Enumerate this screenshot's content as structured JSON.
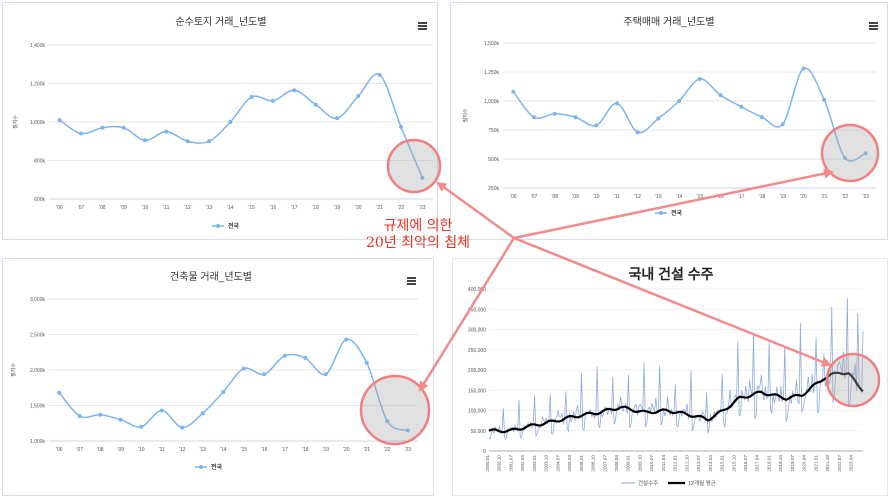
{
  "annotation": {
    "line1": "규제에 의한",
    "line2": "20년 최악의 침체"
  },
  "charts": [
    {
      "id": "land",
      "type": "line",
      "title": "순수토지 거래_년도별",
      "ylabel": "필지수",
      "ylim": [
        600000,
        1400000
      ],
      "yticks": [
        "600k",
        "800k",
        "1,000k",
        "1,200k",
        "1,400k"
      ],
      "ytick_values": [
        600000,
        800000,
        1000000,
        1200000,
        1400000
      ],
      "categories": [
        "'06",
        "'07",
        "'08",
        "'09",
        "'10",
        "'11",
        "'12",
        "'13",
        "'14",
        "'15",
        "'16",
        "'17",
        "'18",
        "'19",
        "'20",
        "'21",
        "'22",
        "'23"
      ],
      "series": [
        {
          "name": "전국",
          "values": [
            1010000,
            940000,
            970000,
            970000,
            905000,
            950000,
            900000,
            900000,
            1000000,
            1130000,
            1110000,
            1165000,
            1090000,
            1020000,
            1135000,
            1245000,
            975000,
            710000
          ]
        }
      ],
      "color": "#7cb5ec"
    },
    {
      "id": "housing",
      "type": "line",
      "title": "주택매매 거래_년도별",
      "ylabel": "필지수",
      "ylim": [
        250000,
        1500000
      ],
      "yticks": [
        "250k",
        "500k",
        "750k",
        "1,000k",
        "1,250k",
        "1,500k"
      ],
      "ytick_values": [
        250000,
        500000,
        750000,
        1000000,
        1250000,
        1500000
      ],
      "categories": [
        "'06",
        "'07",
        "'08",
        "'09",
        "'10",
        "'11",
        "'12",
        "'13",
        "'14",
        "'15",
        "'16",
        "'17",
        "'18",
        "'19",
        "'20",
        "'21",
        "'22",
        "'23"
      ],
      "series": [
        {
          "name": "전국",
          "values": [
            1080000,
            860000,
            890000,
            860000,
            790000,
            980000,
            730000,
            850000,
            1000000,
            1190000,
            1050000,
            950000,
            860000,
            800000,
            1280000,
            1010000,
            510000,
            550000
          ]
        }
      ],
      "color": "#7cb5ec"
    },
    {
      "id": "building",
      "type": "line",
      "title": "건축물 거래_년도별",
      "ylabel": "필지수",
      "ylim": [
        1000000,
        3000000
      ],
      "yticks": [
        "1,000k",
        "1,500k",
        "2,000k",
        "2,500k",
        "3,000k"
      ],
      "ytick_values": [
        1000000,
        1500000,
        2000000,
        2500000,
        3000000
      ],
      "categories": [
        "'06",
        "'07",
        "'08",
        "'09",
        "'10",
        "'11",
        "'12",
        "'13",
        "'14",
        "'15",
        "'16",
        "'17",
        "'18",
        "'19",
        "'20",
        "'21",
        "'22",
        "'23"
      ],
      "series": [
        {
          "name": "전국",
          "values": [
            1680000,
            1350000,
            1370000,
            1300000,
            1200000,
            1430000,
            1190000,
            1390000,
            1690000,
            2020000,
            1940000,
            2200000,
            2170000,
            1940000,
            2430000,
            2100000,
            1280000,
            1150000
          ]
        }
      ],
      "color": "#7cb5ec"
    }
  ],
  "construction": {
    "type": "line",
    "title": "국내 건설 수주",
    "ylim": [
      0,
      400000
    ],
    "yticks": [
      "0",
      "50,000",
      "100,000",
      "150,000",
      "200,000",
      "250,000",
      "300,000",
      "350,000",
      "400,000"
    ],
    "ytick_values": [
      0,
      50000,
      100000,
      150000,
      200000,
      250000,
      300000,
      350000,
      400000
    ],
    "xticks": [
      "2000.01",
      "2000.10",
      "2001.07",
      "2002.04",
      "2003.01",
      "2003.10",
      "2004.07",
      "2005.04",
      "2006.01",
      "2006.10",
      "2007.07",
      "2008.04",
      "2009.01",
      "2009.10",
      "2010.07",
      "2011.04",
      "2012.01",
      "2012.10",
      "2013.07",
      "2014.04",
      "2015.01",
      "2015.10",
      "2016.07",
      "2017.04",
      "2018.01",
      "2018.10",
      "2019.07",
      "2020.04",
      "2021.01",
      "2021.10",
      "2022.07",
      "2023.04"
    ],
    "series": [
      {
        "name": "건설수주",
        "color": "#8faadc"
      },
      {
        "name": "12개월 평균",
        "color": "#000000"
      }
    ],
    "trend_anchors": {
      "x": [
        "2000.01",
        "2001.06",
        "2002.06",
        "2004.01",
        "2005.06",
        "2007.01",
        "2008.06",
        "2010.01",
        "2011.06",
        "2013.01",
        "2014.01",
        "2015.01",
        "2016.01",
        "2017.06",
        "2019.01",
        "2020.01",
        "2021.06",
        "2022.06",
        "2023.01",
        "2023.12"
      ],
      "y": [
        50000,
        50000,
        60000,
        72000,
        85000,
        95000,
        108000,
        95000,
        100000,
        88000,
        78000,
        100000,
        130000,
        145000,
        130000,
        138000,
        180000,
        195000,
        190000,
        150000
      ]
    }
  }
}
